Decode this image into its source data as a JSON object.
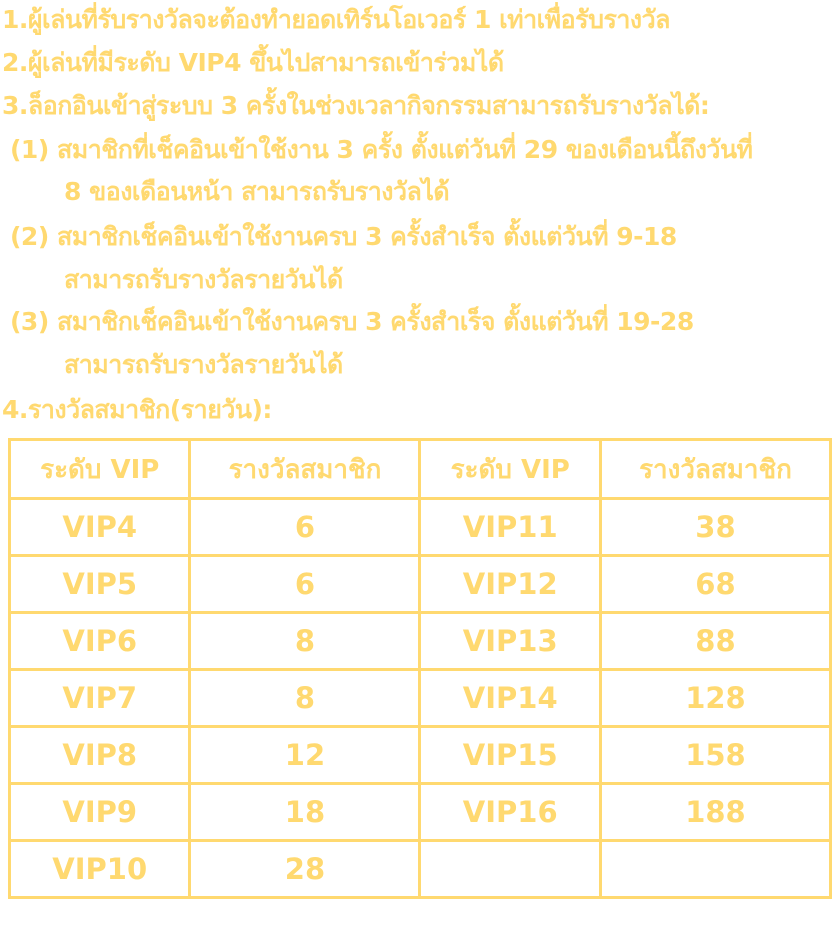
{
  "rules": [
    "1.ผู้เล่นที่รับรางวัลจะต้องทำยอดเทิร์นโอเวอร์ 1 เท่าเพื่อรับรางวัล",
    "2.ผู้เล่นที่มีระดับ VIP4 ขึ้นไปสามารถเข้าร่วมได้",
    "3.ล็อกอินเข้าสู่ระบบ 3 ครั้งในช่วงเวลากิจกรรมสามารถรับรางวัลได้:",
    "(1) สมาชิกที่เช็คอินเข้าใช้งาน 3 ครั้ง ตั้งแต่วันที่ 29 ของเดือนนี้ถึงวันที่",
    "8 ของเดือนหน้า สามารถรับรางวัลได้",
    "(2) สมาชิกเช็คอินเข้าใช้งานครบ 3 ครั้งสำเร็จ ตั้งแต่วันที่ 9-18",
    "สามารถรับรางวัลรายวันได้",
    "(3) สมาชิกเช็คอินเข้าใช้งานครบ 3 ครั้งสำเร็จ ตั้งแต่วันที่ 19-28",
    "สามารถรับรางวัลรายวันได้",
    "4.รางวัลสมาชิก(รายวัน):"
  ],
  "table": {
    "headers": [
      "ระดับ VIP",
      "รางวัลสมาชิก",
      "ระดับ VIP",
      "รางวัลสมาชิก"
    ],
    "rows": [
      [
        "VIP4",
        "6",
        "VIP11",
        "38"
      ],
      [
        "VIP5",
        "6",
        "VIP12",
        "68"
      ],
      [
        "VIP6",
        "8",
        "VIP13",
        "88"
      ],
      [
        "VIP7",
        "8",
        "VIP14",
        "128"
      ],
      [
        "VIP8",
        "12",
        "VIP15",
        "158"
      ],
      [
        "VIP9",
        "18",
        "VIP16",
        "188"
      ],
      [
        "VIP10",
        "28",
        "",
        ""
      ]
    ]
  },
  "colors": {
    "text": "#FFD970",
    "background": "#FFFFFF"
  }
}
